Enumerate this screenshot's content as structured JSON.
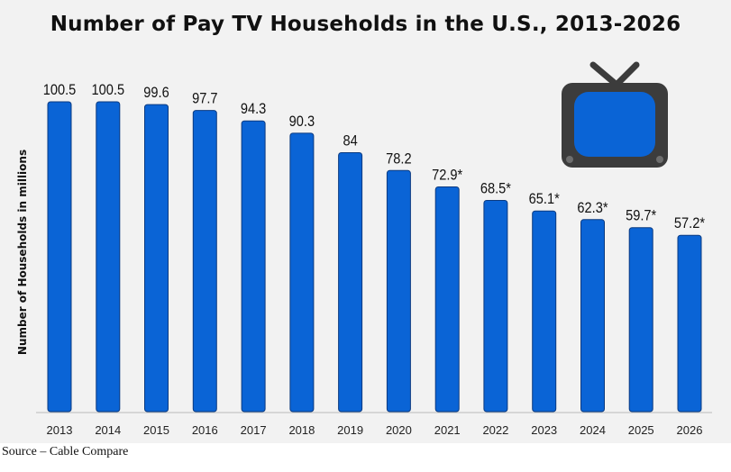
{
  "chart_data": {
    "type": "bar",
    "title": "Number of Pay TV Households in the U.S., 2013-2026",
    "ylabel": "Number of Households in millions",
    "xlabel": "",
    "ylim": [
      0,
      100.5
    ],
    "categories": [
      "2013",
      "2014",
      "2015",
      "2016",
      "2017",
      "2018",
      "2019",
      "2020",
      "2021",
      "2022",
      "2023",
      "2024",
      "2025",
      "2026"
    ],
    "values": [
      100.5,
      100.5,
      99.6,
      97.7,
      94.3,
      90.3,
      84,
      78.2,
      72.9,
      68.5,
      65.1,
      62.3,
      59.7,
      57.2
    ],
    "data_labels": [
      "100.5",
      "100.5",
      "99.6",
      "97.7",
      "94.3",
      "90.3",
      "84",
      "78.2",
      "72.9*",
      "68.5*",
      "65.1*",
      "62.3*",
      "59.7*",
      "57.2*"
    ],
    "bar_color": "#0a64d6",
    "bar_edge_color": "#0a3a80",
    "grid": false,
    "legend": "none"
  },
  "decoration": {
    "icon": "tv-icon",
    "body_color": "#3c3c3c",
    "screen_color": "#0a64d6"
  },
  "source": "Source – Cable Compare"
}
